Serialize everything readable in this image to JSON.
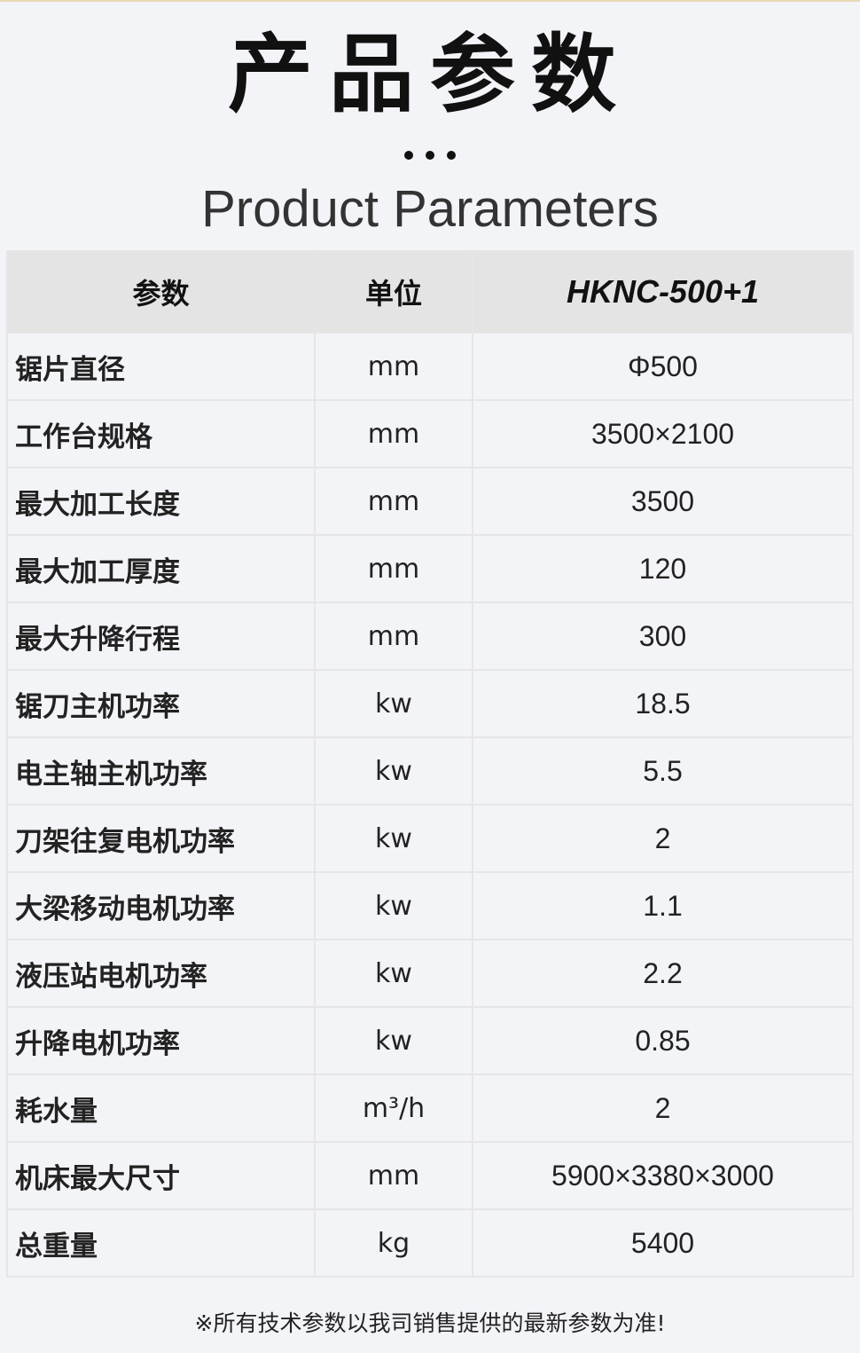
{
  "title": "产品参数",
  "subtitle": "Product Parameters",
  "table": {
    "headers": [
      "参数",
      "单位",
      "HKNC-500+1"
    ],
    "rows": [
      [
        "锯片直径",
        "mm",
        "Φ500"
      ],
      [
        "工作台规格",
        "mm",
        "3500×2100"
      ],
      [
        "最大加工长度",
        "mm",
        "3500"
      ],
      [
        "最大加工厚度",
        "mm",
        "120"
      ],
      [
        "最大升降行程",
        "mm",
        "300"
      ],
      [
        "锯刀主机功率",
        "kw",
        "18.5"
      ],
      [
        "电主轴主机功率",
        "kw",
        "5.5"
      ],
      [
        "刀架往复电机功率",
        "kw",
        "2"
      ],
      [
        "大梁移动电机功率",
        "kw",
        "1.1"
      ],
      [
        "液压站电机功率",
        "kw",
        "2.2"
      ],
      [
        "升降电机功率",
        "kw",
        "0.85"
      ],
      [
        "耗水量",
        "m³/h",
        "2"
      ],
      [
        "机床最大尺寸",
        "mm",
        "5900×3380×3000"
      ],
      [
        "总重量",
        "kg",
        "5400"
      ]
    ]
  },
  "note": "※所有技术参数以我司销售提供的最新参数为准!"
}
